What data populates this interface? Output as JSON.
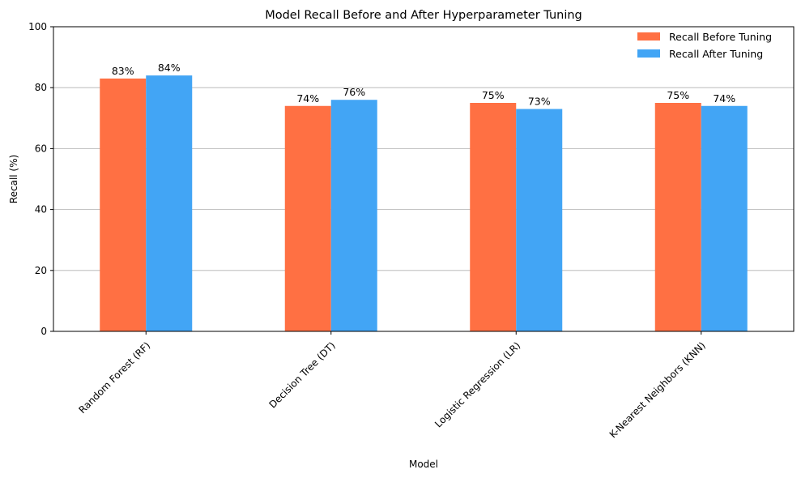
{
  "chart_data": {
    "type": "bar",
    "title": "Model Recall Before and After Hyperparameter Tuning",
    "xlabel": "Model",
    "ylabel": "Recall (%)",
    "categories": [
      "Random Forest (RF)",
      "Decision Tree (DT)",
      "Logistic Regression (LR)",
      "K-Nearest Neighbors (KNN)"
    ],
    "series": [
      {
        "name": "Recall Before Tuning",
        "color": "#ff7043",
        "values": [
          83,
          74,
          75,
          75
        ],
        "labels": [
          "83%",
          "74%",
          "75%",
          "75%"
        ]
      },
      {
        "name": "Recall After Tuning",
        "color": "#42a5f5",
        "values": [
          84,
          76,
          73,
          74
        ],
        "labels": [
          "84%",
          "76%",
          "73%",
          "74%"
        ]
      }
    ],
    "ylim": [
      0,
      100
    ],
    "yticks": [
      0,
      20,
      40,
      60,
      80,
      100
    ],
    "grid": "y",
    "legend": "top-right",
    "tick_rotation": 45
  }
}
